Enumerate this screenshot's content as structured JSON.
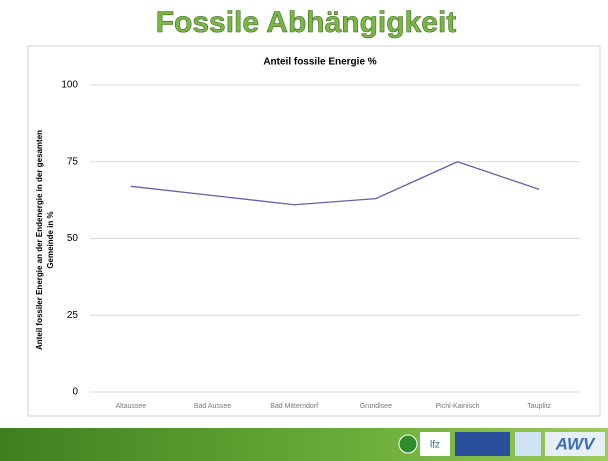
{
  "header": {
    "title": "Fossile Abhängigkeit"
  },
  "chart_data": {
    "type": "line",
    "title": "Anteil fossile Energie %",
    "ylabel": [
      "Anteil fossiler Energie an der Endenergie in der gesamten",
      "Gemeinde in %"
    ],
    "categories": [
      "Altaussee",
      "Bad Aussee",
      "Bad Mitterndorf",
      "Grundlsee",
      "Pichl-Kainisch",
      "Tauplitz"
    ],
    "series": [
      {
        "name": "Anteil fossile Energie %",
        "color": "#6464a8",
        "values": [
          67,
          64,
          61,
          63,
          75,
          66
        ]
      }
    ],
    "ylim": [
      0,
      100
    ],
    "yticks": [
      0,
      25,
      50,
      75,
      100
    ],
    "grid": true
  },
  "footer": {
    "logos": [
      "lfz",
      "AWV"
    ]
  }
}
